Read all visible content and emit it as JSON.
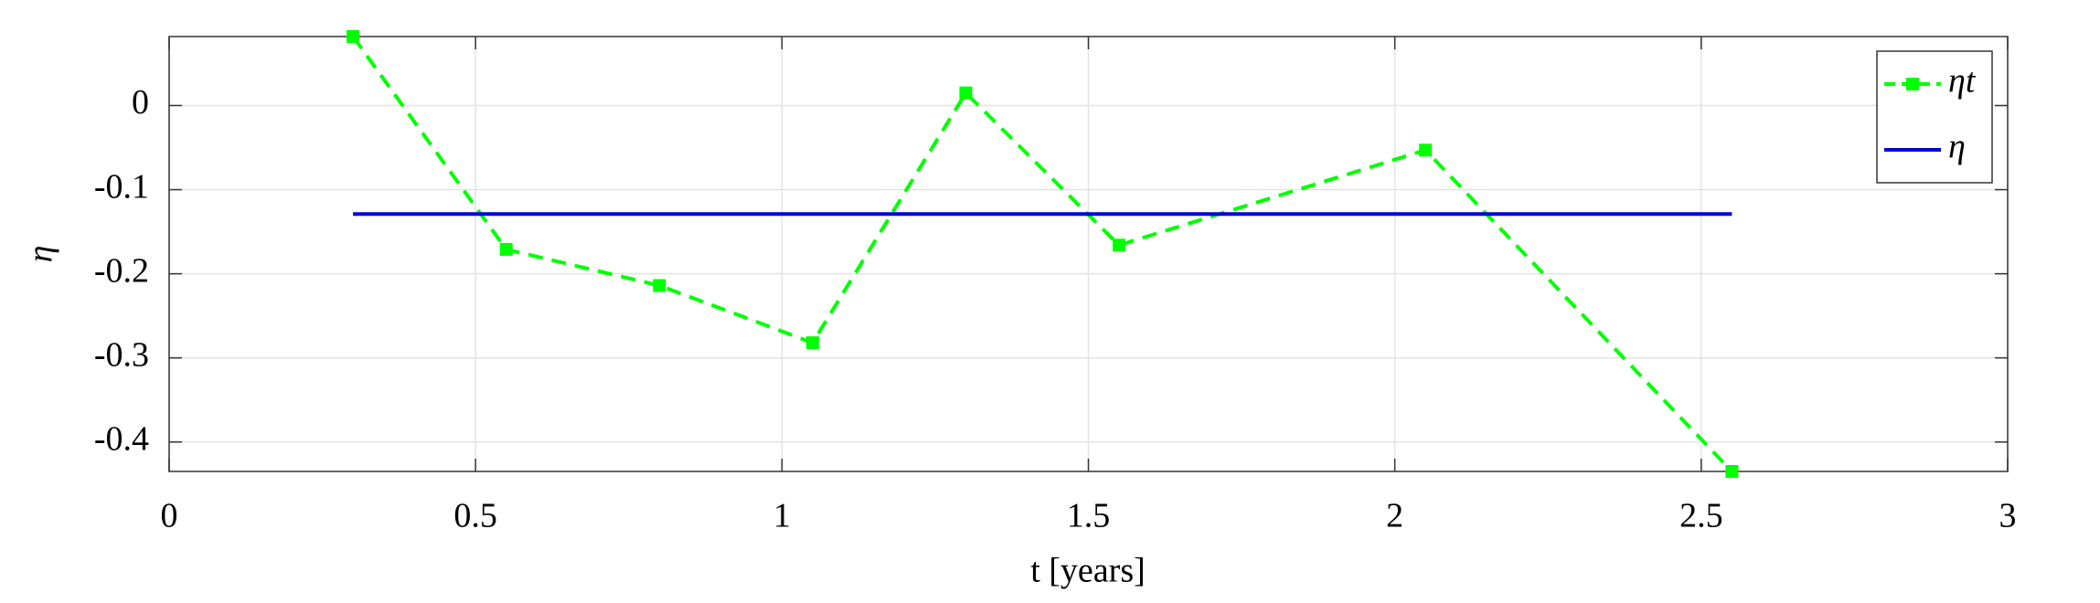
{
  "chart_data": {
    "type": "line",
    "xlabel": "t [years]",
    "ylabel": "η",
    "xlim": [
      0,
      3
    ],
    "xticks": [
      0,
      0.5,
      1,
      1.5,
      2,
      2.5,
      3
    ],
    "ylim": [
      -0.435,
      0.082
    ],
    "yticks": [
      -0.4,
      -0.3,
      -0.2,
      -0.1,
      0
    ],
    "grid": true,
    "legend": "upper right",
    "series": [
      {
        "name": "ηt",
        "color": "#00ff00",
        "style": "dashed",
        "marker": "square",
        "x": [
          0.3,
          0.55,
          0.8,
          1.05,
          1.3,
          1.55,
          2.05,
          2.55
        ],
        "values": [
          0.082,
          -0.171,
          -0.214,
          -0.282,
          0.015,
          -0.166,
          -0.053,
          -0.435
        ]
      },
      {
        "name": "η",
        "color": "#0000dd",
        "style": "solid",
        "marker": "none",
        "x": [
          0.3,
          2.55
        ],
        "values": [
          -0.129,
          -0.129
        ]
      }
    ]
  }
}
